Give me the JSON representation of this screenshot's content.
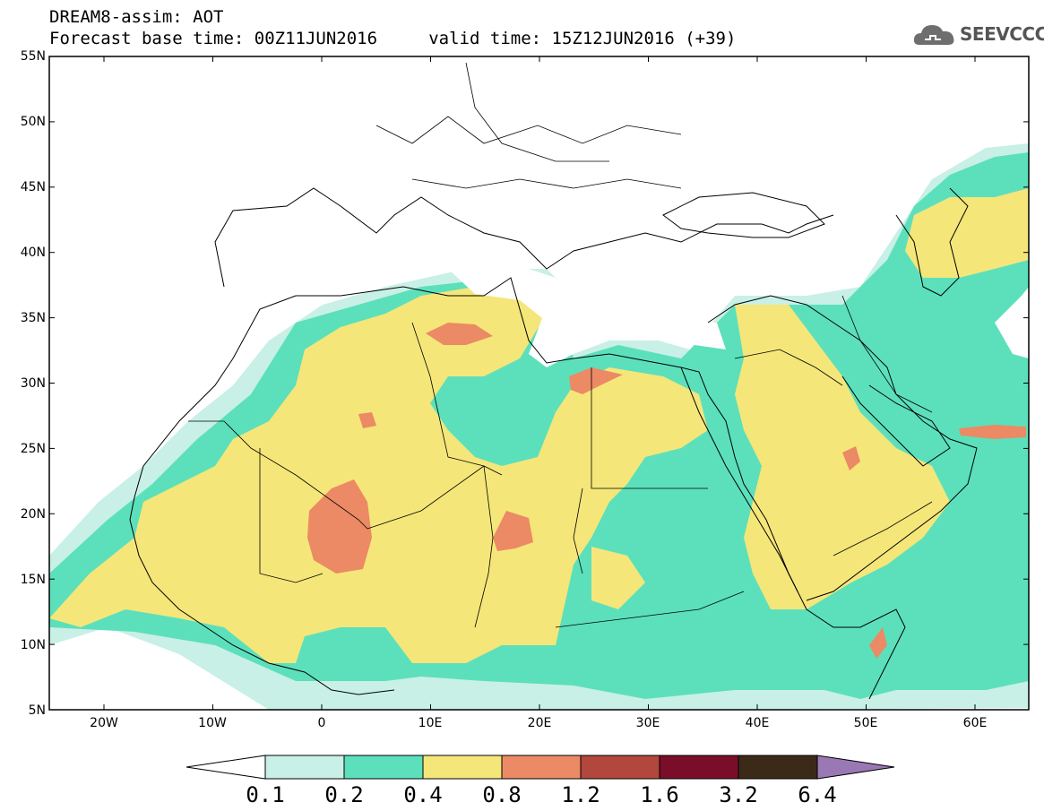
{
  "header": {
    "title_line1": "DREAM8-assim: AOT",
    "title_line2": "Forecast base time: 00Z11JUN2016     valid time: 15Z12JUN2016 (+39)"
  },
  "logo": {
    "text": "SEEVCCC",
    "icon": "cloud-icon"
  },
  "map": {
    "projection": "equirectangular",
    "lon_range": [
      -25,
      65
    ],
    "lat_range": [
      5,
      55
    ],
    "lat_ticks": [
      "5N",
      "10N",
      "15N",
      "20N",
      "25N",
      "30N",
      "35N",
      "40N",
      "45N",
      "50N",
      "55N"
    ],
    "lon_ticks": [
      "20W",
      "10W",
      "0",
      "10E",
      "20E",
      "30E",
      "40E",
      "50E",
      "60E"
    ]
  },
  "colorbar": {
    "labels": [
      "0.1",
      "0.2",
      "0.4",
      "0.8",
      "1.2",
      "1.6",
      "3.2",
      "6.4"
    ],
    "colors": [
      "#ffffff",
      "#c8f0e6",
      "#5ce0bb",
      "#f5e67a",
      "#eb8a64",
      "#b2473e",
      "#7a0e2a",
      "#3c2a18",
      "#9a78b4"
    ]
  }
}
